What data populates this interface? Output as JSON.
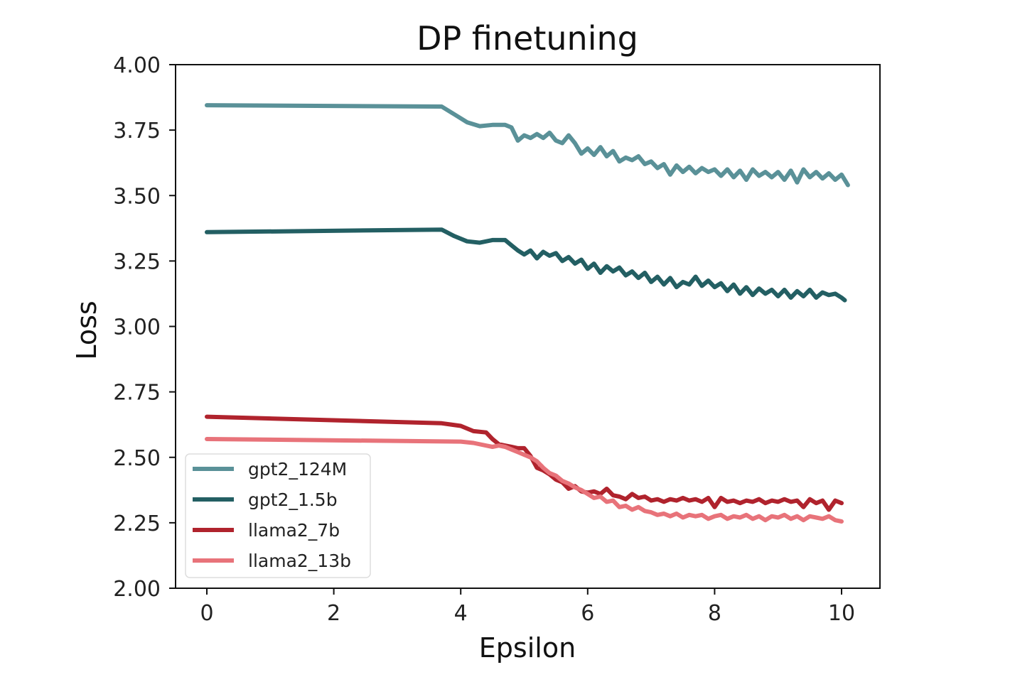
{
  "chart_data": {
    "type": "line",
    "title": "DP finetuning",
    "xlabel": "Epsilon",
    "ylabel": "Loss",
    "xlim": [
      -0.5,
      10.6
    ],
    "ylim": [
      2.0,
      4.0
    ],
    "xticks": [
      "0",
      "2",
      "4",
      "6",
      "8",
      "10"
    ],
    "xtick_values": [
      0,
      2,
      4,
      6,
      8,
      10
    ],
    "yticks": [
      "4.00",
      "3.75",
      "3.50",
      "3.25",
      "3.00",
      "2.75",
      "2.50",
      "2.25",
      "2.00"
    ],
    "ytick_values": [
      4.0,
      3.75,
      3.5,
      3.25,
      3.0,
      2.75,
      2.5,
      2.25,
      2.0
    ],
    "grid": false,
    "legend_position": "lower-left",
    "series": [
      {
        "name": "gpt2_124M",
        "color": "#5a9198",
        "x": [
          0,
          3.7,
          3.9,
          4.1,
          4.3,
          4.5,
          4.7,
          4.8,
          4.9,
          5.0,
          5.1,
          5.2,
          5.3,
          5.4,
          5.5,
          5.6,
          5.7,
          5.8,
          5.9,
          6.0,
          6.1,
          6.2,
          6.3,
          6.4,
          6.5,
          6.6,
          6.7,
          6.8,
          6.9,
          7.0,
          7.1,
          7.2,
          7.3,
          7.4,
          7.5,
          7.6,
          7.7,
          7.8,
          7.9,
          8.0,
          8.1,
          8.2,
          8.3,
          8.4,
          8.5,
          8.6,
          8.7,
          8.8,
          8.9,
          9.0,
          9.1,
          9.2,
          9.3,
          9.4,
          9.5,
          9.6,
          9.7,
          9.8,
          9.9,
          10.0,
          10.1
        ],
        "y": [
          3.845,
          3.84,
          3.81,
          3.78,
          3.765,
          3.77,
          3.77,
          3.76,
          3.71,
          3.73,
          3.72,
          3.735,
          3.72,
          3.74,
          3.71,
          3.7,
          3.73,
          3.7,
          3.66,
          3.68,
          3.655,
          3.685,
          3.65,
          3.67,
          3.63,
          3.645,
          3.635,
          3.65,
          3.62,
          3.63,
          3.605,
          3.62,
          3.58,
          3.615,
          3.59,
          3.61,
          3.585,
          3.605,
          3.59,
          3.6,
          3.575,
          3.6,
          3.57,
          3.595,
          3.56,
          3.6,
          3.575,
          3.59,
          3.57,
          3.59,
          3.56,
          3.595,
          3.55,
          3.6,
          3.57,
          3.59,
          3.565,
          3.585,
          3.56,
          3.58,
          3.54
        ]
      },
      {
        "name": "gpt2_1.5b",
        "color": "#235f63",
        "x": [
          0,
          3.7,
          3.9,
          4.1,
          4.3,
          4.5,
          4.7,
          4.8,
          4.9,
          5.0,
          5.1,
          5.2,
          5.3,
          5.4,
          5.5,
          5.6,
          5.7,
          5.8,
          5.9,
          6.0,
          6.1,
          6.2,
          6.3,
          6.4,
          6.5,
          6.6,
          6.7,
          6.8,
          6.9,
          7.0,
          7.1,
          7.2,
          7.3,
          7.4,
          7.5,
          7.6,
          7.7,
          7.8,
          7.9,
          8.0,
          8.1,
          8.2,
          8.3,
          8.4,
          8.5,
          8.6,
          8.7,
          8.8,
          8.9,
          9.0,
          9.1,
          9.2,
          9.3,
          9.4,
          9.5,
          9.6,
          9.7,
          9.8,
          9.9,
          10.0,
          10.05
        ],
        "y": [
          3.36,
          3.37,
          3.345,
          3.325,
          3.32,
          3.33,
          3.33,
          3.31,
          3.29,
          3.275,
          3.29,
          3.26,
          3.285,
          3.27,
          3.28,
          3.25,
          3.265,
          3.24,
          3.255,
          3.22,
          3.24,
          3.205,
          3.23,
          3.21,
          3.225,
          3.195,
          3.21,
          3.185,
          3.205,
          3.17,
          3.19,
          3.16,
          3.185,
          3.15,
          3.17,
          3.16,
          3.19,
          3.155,
          3.175,
          3.15,
          3.165,
          3.135,
          3.16,
          3.125,
          3.15,
          3.12,
          3.145,
          3.125,
          3.14,
          3.115,
          3.14,
          3.11,
          3.135,
          3.115,
          3.14,
          3.11,
          3.13,
          3.12,
          3.125,
          3.11,
          3.1
        ]
      },
      {
        "name": "llama2_7b",
        "color": "#b0232d",
        "x": [
          0,
          3.7,
          4.0,
          4.2,
          4.4,
          4.5,
          4.6,
          4.7,
          4.8,
          4.9,
          5.0,
          5.1,
          5.2,
          5.3,
          5.4,
          5.5,
          5.6,
          5.7,
          5.8,
          5.9,
          6.0,
          6.1,
          6.2,
          6.3,
          6.4,
          6.5,
          6.6,
          6.7,
          6.8,
          6.9,
          7.0,
          7.1,
          7.2,
          7.3,
          7.4,
          7.5,
          7.6,
          7.7,
          7.8,
          7.9,
          8.0,
          8.1,
          8.2,
          8.3,
          8.4,
          8.5,
          8.6,
          8.7,
          8.8,
          8.9,
          9.0,
          9.1,
          9.2,
          9.3,
          9.4,
          9.5,
          9.6,
          9.7,
          9.8,
          9.9,
          10.0
        ],
        "y": [
          2.655,
          2.63,
          2.62,
          2.6,
          2.595,
          2.57,
          2.55,
          2.545,
          2.54,
          2.535,
          2.535,
          2.505,
          2.46,
          2.45,
          2.435,
          2.415,
          2.405,
          2.38,
          2.39,
          2.37,
          2.365,
          2.37,
          2.36,
          2.38,
          2.355,
          2.35,
          2.34,
          2.36,
          2.345,
          2.35,
          2.335,
          2.34,
          2.33,
          2.34,
          2.335,
          2.345,
          2.335,
          2.34,
          2.33,
          2.345,
          2.31,
          2.345,
          2.33,
          2.335,
          2.325,
          2.335,
          2.33,
          2.34,
          2.325,
          2.335,
          2.33,
          2.34,
          2.33,
          2.335,
          2.31,
          2.34,
          2.325,
          2.335,
          2.3,
          2.335,
          2.325
        ]
      },
      {
        "name": "llama2_13b",
        "color": "#e8737a",
        "x": [
          0,
          4.0,
          4.2,
          4.4,
          4.5,
          4.6,
          4.7,
          4.8,
          4.9,
          5.0,
          5.1,
          5.2,
          5.3,
          5.4,
          5.5,
          5.6,
          5.7,
          5.8,
          5.9,
          6.0,
          6.1,
          6.2,
          6.3,
          6.4,
          6.5,
          6.6,
          6.7,
          6.8,
          6.9,
          7.0,
          7.1,
          7.2,
          7.3,
          7.4,
          7.5,
          7.6,
          7.7,
          7.8,
          7.9,
          8.0,
          8.1,
          8.2,
          8.3,
          8.4,
          8.5,
          8.6,
          8.7,
          8.8,
          8.9,
          9.0,
          9.1,
          9.2,
          9.3,
          9.4,
          9.5,
          9.6,
          9.7,
          9.8,
          9.9,
          10.0
        ],
        "y": [
          2.57,
          2.56,
          2.555,
          2.545,
          2.54,
          2.545,
          2.54,
          2.53,
          2.52,
          2.51,
          2.5,
          2.485,
          2.46,
          2.44,
          2.43,
          2.41,
          2.4,
          2.385,
          2.375,
          2.36,
          2.345,
          2.35,
          2.33,
          2.335,
          2.31,
          2.315,
          2.3,
          2.31,
          2.295,
          2.29,
          2.28,
          2.285,
          2.275,
          2.285,
          2.27,
          2.28,
          2.275,
          2.28,
          2.265,
          2.275,
          2.28,
          2.265,
          2.275,
          2.27,
          2.28,
          2.265,
          2.275,
          2.26,
          2.275,
          2.27,
          2.28,
          2.265,
          2.275,
          2.26,
          2.275,
          2.27,
          2.265,
          2.275,
          2.26,
          2.255
        ]
      }
    ]
  }
}
